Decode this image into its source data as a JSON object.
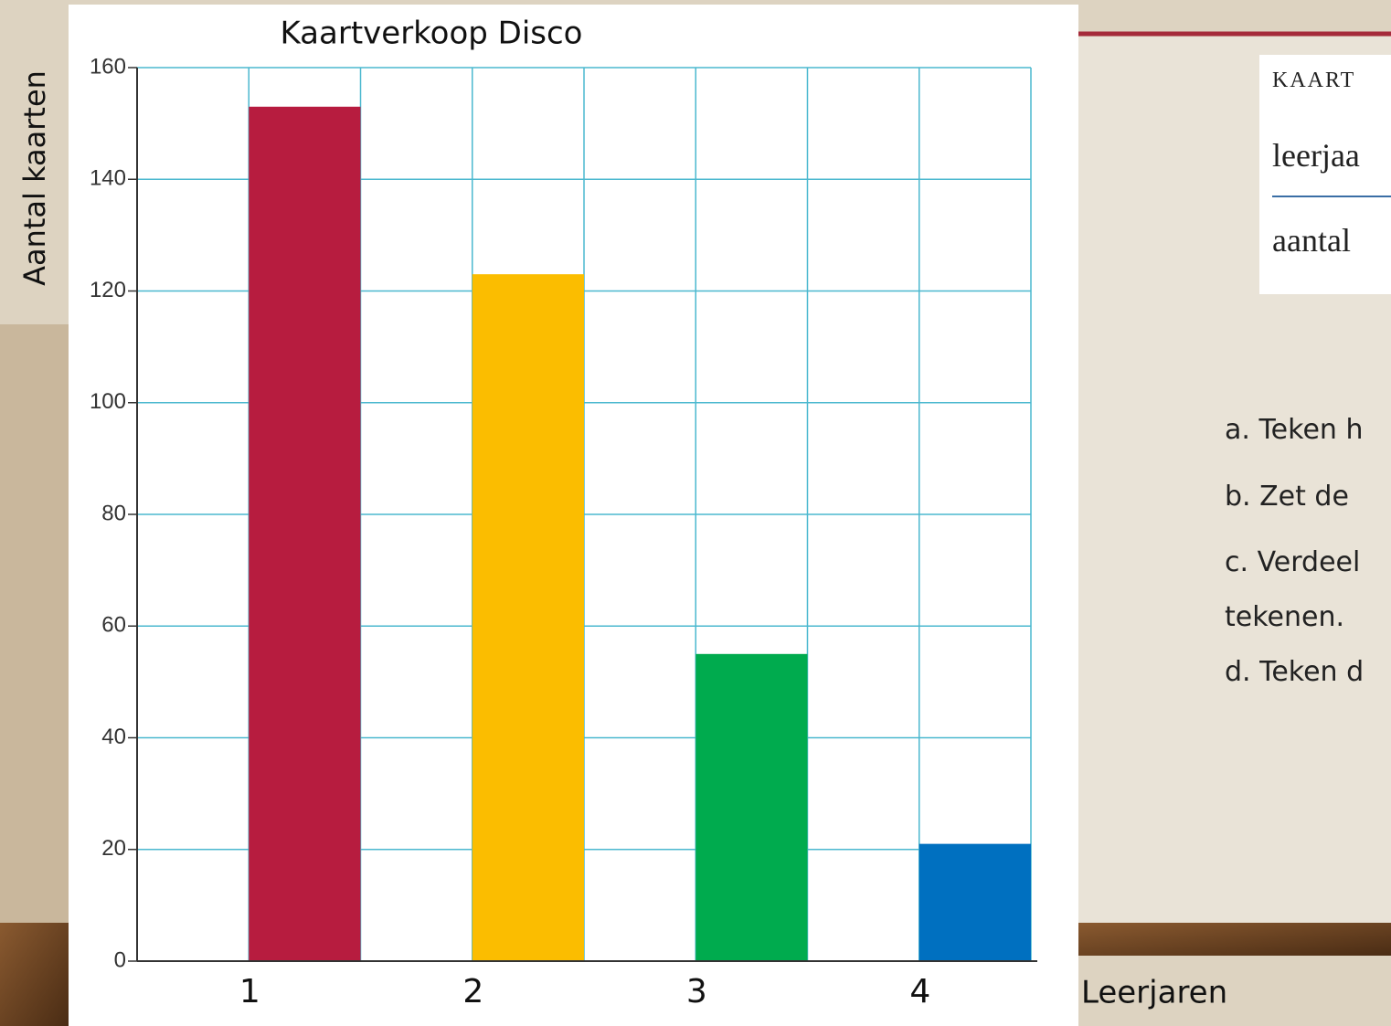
{
  "chart_data": {
    "type": "bar",
    "title": "Kaartverkoop Disco",
    "x_label": "Leerjaren",
    "y_label": "Aantal kaarten",
    "categories": [
      "1",
      "2",
      "3",
      "4"
    ],
    "values": [
      153,
      123,
      55,
      21
    ],
    "colors": [
      "#b71c3f",
      "#fbbd00",
      "#00ab4e",
      "#0070c0"
    ],
    "ylim": [
      0,
      160
    ],
    "yticks": [
      0,
      20,
      40,
      60,
      80,
      100,
      120,
      140,
      160
    ],
    "grid": true
  },
  "slide": {
    "table": {
      "header": "KAART",
      "rows": [
        "leerjaa",
        "aantal"
      ]
    },
    "instructions": [
      "a. Teken h",
      "b. Zet de",
      "c. Verdeel",
      "tekenen.",
      "d. Teken d"
    ]
  }
}
